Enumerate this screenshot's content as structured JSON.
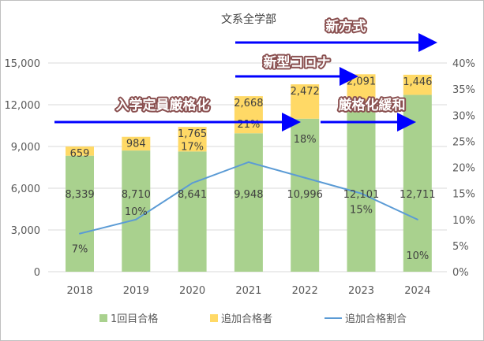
{
  "chart_data": {
    "type": "bar",
    "title": "文系全学部",
    "categories": [
      "2018",
      "2019",
      "2020",
      "2021",
      "2022",
      "2023",
      "2024"
    ],
    "series": [
      {
        "name": "1回目合格",
        "type": "stacked-bar",
        "color": "#a9d18e",
        "values": [
          8339,
          8710,
          8641,
          9948,
          10996,
          12101,
          12711
        ],
        "labels": [
          "8,339",
          "8,710",
          "8,641",
          "9,948",
          "10,996",
          "12,101",
          "12,711"
        ]
      },
      {
        "name": "追加合格者",
        "type": "stacked-bar",
        "color": "#ffd966",
        "values": [
          659,
          984,
          1765,
          2668,
          2472,
          2091,
          1446
        ],
        "labels": [
          "659",
          "984",
          "1,765",
          "2,668",
          "2,472",
          "2,091",
          "1,446"
        ]
      },
      {
        "name": "追加合格割合",
        "type": "line",
        "axis": "right",
        "color": "#5b9bd5",
        "values": [
          0.073,
          0.1,
          0.17,
          0.21,
          0.18,
          0.15,
          0.1
        ],
        "labels": [
          "7%",
          "10%",
          "17%",
          "21%",
          "18%",
          "15%",
          "10%"
        ]
      }
    ],
    "ylim": [
      0,
      15000
    ],
    "yticks": [
      "0",
      "3,000",
      "6,000",
      "9,000",
      "12,000",
      "15,000"
    ],
    "y2lim": [
      0,
      0.4
    ],
    "y2ticks": [
      "0%",
      "5%",
      "10%",
      "15%",
      "20%",
      "25%",
      "30%",
      "35%",
      "40%"
    ],
    "grid": true,
    "legend": "bottom",
    "annotations": [
      {
        "text": "新方式",
        "from": "2021",
        "to": "beyond-2024"
      },
      {
        "text": "新型コロナ",
        "from": "2021",
        "to": "2023"
      },
      {
        "text": "入学定員厳格化",
        "from": "before-2018",
        "to": "2022"
      },
      {
        "text": "厳格化緩和",
        "from": "2022",
        "to": "2024"
      }
    ]
  }
}
